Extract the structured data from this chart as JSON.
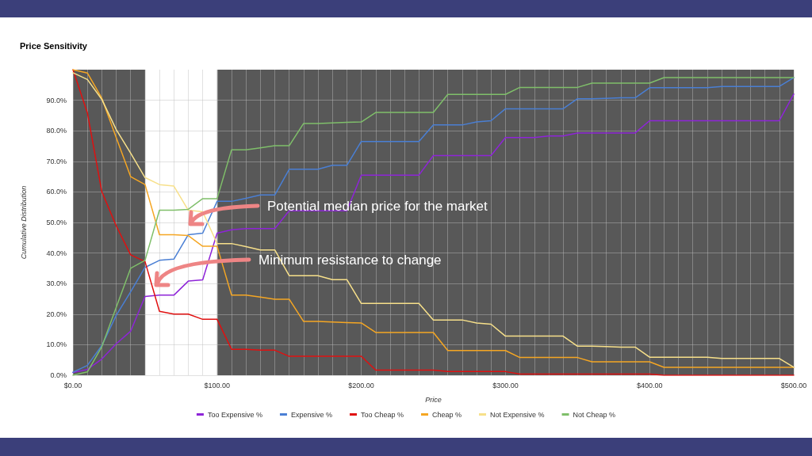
{
  "chart_data": {
    "type": "line",
    "title": "Price Sensitivity",
    "xlabel": "Price",
    "ylabel": "Cumulative Distribution",
    "x": [
      0,
      10,
      20,
      30,
      40,
      50,
      60,
      70,
      80,
      90,
      100,
      110,
      120,
      130,
      140,
      150,
      160,
      170,
      180,
      190,
      200,
      210,
      220,
      230,
      240,
      250,
      260,
      270,
      280,
      290,
      300,
      310,
      320,
      330,
      340,
      350,
      360,
      370,
      380,
      390,
      400,
      410,
      420,
      430,
      440,
      450,
      460,
      470,
      480,
      490,
      500
    ],
    "series": [
      {
        "name": "Too Expensive %",
        "color": "#8e24d8",
        "values": [
          0.9,
          1.9,
          5.3,
          10.3,
          14.4,
          25.8,
          26.2,
          26.2,
          30.8,
          31.2,
          46.5,
          47.6,
          48.0,
          48.0,
          48.0,
          53.8,
          53.8,
          53.8,
          53.8,
          53.8,
          65.5,
          65.5,
          65.5,
          65.5,
          65.5,
          71.9,
          71.9,
          71.9,
          71.9,
          71.9,
          77.8,
          77.8,
          77.8,
          78.3,
          78.3,
          79.3,
          79.3,
          79.3,
          79.3,
          79.3,
          83.3,
          83.3,
          83.3,
          83.3,
          83.3,
          83.3,
          83.3,
          83.3,
          83.3,
          83.3,
          92.0
        ]
      },
      {
        "name": "Expensive %",
        "color": "#4a7fd4",
        "values": [
          1.0,
          3.2,
          9.7,
          19.6,
          27.3,
          35.3,
          37.6,
          38.0,
          46.0,
          46.5,
          56.9,
          56.9,
          57.9,
          59.0,
          59.0,
          67.4,
          67.4,
          67.4,
          68.7,
          68.7,
          76.5,
          76.5,
          76.5,
          76.5,
          76.5,
          81.9,
          81.9,
          81.9,
          82.9,
          83.3,
          87.2,
          87.2,
          87.2,
          87.2,
          87.2,
          90.5,
          90.5,
          90.6,
          90.8,
          90.8,
          94.1,
          94.1,
          94.1,
          94.1,
          94.1,
          94.5,
          94.5,
          94.5,
          94.5,
          94.5,
          97.4
        ]
      },
      {
        "name": "Too Cheap %",
        "color": "#e01010",
        "values": [
          100,
          85.9,
          60.1,
          48.9,
          39.4,
          37.2,
          20.9,
          20.0,
          20.0,
          18.3,
          18.3,
          8.5,
          8.5,
          8.2,
          8.2,
          6.2,
          6.2,
          6.2,
          6.2,
          6.2,
          6.2,
          1.7,
          1.7,
          1.7,
          1.7,
          1.7,
          1.2,
          1.2,
          1.2,
          1.2,
          1.2,
          0.4,
          0.4,
          0.4,
          0.4,
          0.4,
          0.4,
          0.4,
          0.4,
          0.4,
          0.4,
          0,
          0,
          0,
          0,
          0,
          0,
          0,
          0,
          0,
          0
        ]
      },
      {
        "name": "Cheap %",
        "color": "#f5a623",
        "values": [
          100,
          98.9,
          90.7,
          77.8,
          65.0,
          62.4,
          46.0,
          46.0,
          45.7,
          42.2,
          42.2,
          26.2,
          26.2,
          25.6,
          24.9,
          24.9,
          17.6,
          17.6,
          17.4,
          17.2,
          17.1,
          14.0,
          14.0,
          14.0,
          14.0,
          14.0,
          8.1,
          8.1,
          8.1,
          8.1,
          8.1,
          5.8,
          5.8,
          5.8,
          5.8,
          5.8,
          4.4,
          4.4,
          4.4,
          4.4,
          4.4,
          2.6,
          2.6,
          2.6,
          2.6,
          2.6,
          2.6,
          2.6,
          2.6,
          2.6,
          2.6
        ]
      },
      {
        "name": "Not Expensive %",
        "color": "#f7e08a",
        "values": [
          99.0,
          96.8,
          90.3,
          80.4,
          72.7,
          64.7,
          62.4,
          61.9,
          54.0,
          53.5,
          43.1,
          43.1,
          42.1,
          41.0,
          41.0,
          32.6,
          32.6,
          32.6,
          31.3,
          31.3,
          23.5,
          23.5,
          23.5,
          23.5,
          23.5,
          18.1,
          18.1,
          18.1,
          17.1,
          16.7,
          12.8,
          12.8,
          12.8,
          12.8,
          12.8,
          9.5,
          9.5,
          9.4,
          9.2,
          9.2,
          5.9,
          5.9,
          5.9,
          5.9,
          5.9,
          5.5,
          5.5,
          5.5,
          5.5,
          5.5,
          2.6
        ]
      },
      {
        "name": "Not Cheap %",
        "color": "#7fbf6a",
        "values": [
          0,
          1.1,
          9.3,
          22.2,
          35.0,
          37.6,
          54.0,
          54.0,
          54.3,
          57.8,
          57.8,
          73.8,
          73.8,
          74.4,
          75.1,
          75.1,
          82.4,
          82.4,
          82.6,
          82.8,
          82.9,
          86.0,
          86.0,
          86.0,
          86.0,
          86.0,
          91.9,
          91.9,
          91.9,
          91.9,
          91.9,
          94.2,
          94.2,
          94.2,
          94.2,
          94.2,
          95.6,
          95.6,
          95.6,
          95.6,
          95.6,
          97.4,
          97.4,
          97.4,
          97.4,
          97.4,
          97.4,
          97.4,
          97.4,
          97.4,
          97.4
        ]
      }
    ],
    "xlim": [
      0,
      500
    ],
    "xticks": [
      {
        "value": 0,
        "label": "$0.00"
      },
      {
        "value": 10,
        "label": null
      },
      {
        "value": 20,
        "label": null
      },
      {
        "value": 30,
        "label": null
      },
      {
        "value": 40,
        "label": null
      },
      {
        "value": 50,
        "label": null
      },
      {
        "value": 60,
        "label": null
      },
      {
        "value": 70,
        "label": null
      },
      {
        "value": 80,
        "label": null
      },
      {
        "value": 90,
        "label": null
      },
      {
        "value": 100,
        "label": "$100.00"
      },
      {
        "value": 110,
        "label": null
      },
      {
        "value": 120,
        "label": null
      },
      {
        "value": 130,
        "label": null
      },
      {
        "value": 140,
        "label": null
      },
      {
        "value": 150,
        "label": null
      },
      {
        "value": 160,
        "label": null
      },
      {
        "value": 170,
        "label": null
      },
      {
        "value": 180,
        "label": null
      },
      {
        "value": 190,
        "label": null
      },
      {
        "value": 200,
        "label": "$200.00"
      },
      {
        "value": 210,
        "label": null
      },
      {
        "value": 220,
        "label": null
      },
      {
        "value": 230,
        "label": null
      },
      {
        "value": 240,
        "label": null
      },
      {
        "value": 250,
        "label": null
      },
      {
        "value": 260,
        "label": null
      },
      {
        "value": 270,
        "label": null
      },
      {
        "value": 280,
        "label": null
      },
      {
        "value": 290,
        "label": null
      },
      {
        "value": 300,
        "label": "$300.00"
      },
      {
        "value": 310,
        "label": null
      },
      {
        "value": 320,
        "label": null
      },
      {
        "value": 330,
        "label": null
      },
      {
        "value": 340,
        "label": null
      },
      {
        "value": 350,
        "label": null
      },
      {
        "value": 360,
        "label": null
      },
      {
        "value": 370,
        "label": null
      },
      {
        "value": 380,
        "label": null
      },
      {
        "value": 390,
        "label": null
      },
      {
        "value": 400,
        "label": "$400.00"
      },
      {
        "value": 410,
        "label": null
      },
      {
        "value": 420,
        "label": null
      },
      {
        "value": 430,
        "label": null
      },
      {
        "value": 440,
        "label": null
      },
      {
        "value": 450,
        "label": null
      },
      {
        "value": 460,
        "label": null
      },
      {
        "value": 470,
        "label": null
      },
      {
        "value": 480,
        "label": null
      },
      {
        "value": 490,
        "label": null
      },
      {
        "value": 500,
        "label": "$500.00"
      }
    ],
    "ylim": [
      0,
      100
    ],
    "yticks": [
      {
        "value": 0,
        "label": "0.0%"
      },
      {
        "value": 10,
        "label": "10.0%"
      },
      {
        "value": 20,
        "label": "20.0%"
      },
      {
        "value": 30,
        "label": "30.0%"
      },
      {
        "value": 40,
        "label": "40.0%"
      },
      {
        "value": 50,
        "label": "50.0%"
      },
      {
        "value": 60,
        "label": "60.0%"
      },
      {
        "value": 70,
        "label": "70.0%"
      },
      {
        "value": 80,
        "label": "80.0%"
      },
      {
        "value": 90,
        "label": "90.0%"
      }
    ],
    "bands": [
      {
        "axis": "x",
        "from": 0,
        "to": 50,
        "color": "#4a4a4a"
      },
      {
        "axis": "x",
        "from": 100,
        "to": 500,
        "color": "#4a4a4a"
      }
    ],
    "annotations": [
      "Potential median price for the market",
      "Minimum resistance to change"
    ],
    "grid": true,
    "legend": "bottom",
    "marker": "none",
    "line_style": "solid"
  }
}
